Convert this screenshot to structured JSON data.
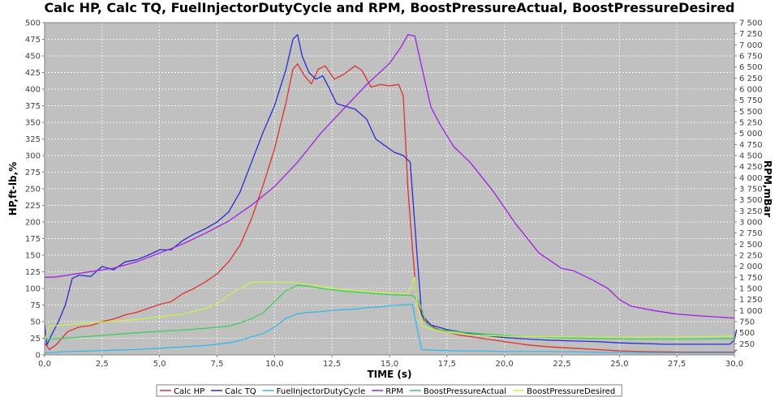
{
  "chart_data": {
    "type": "line",
    "title": "Calc HP, Calc TQ, FuelInjectorDutyCycle and RPM, BoostPressureActual, BoostPressureDesired",
    "xlabel": "TIME (s)",
    "ylabel": "HP,ft-lb,%",
    "y2label": "RPM,mBar",
    "xlim": [
      0,
      30
    ],
    "ylim": [
      0,
      500
    ],
    "y2lim": [
      0,
      7500
    ],
    "x_ticks": [
      "0,0",
      "2,5",
      "5,0",
      "7,5",
      "10,0",
      "12,5",
      "15,0",
      "17,5",
      "20,0",
      "22,5",
      "25,0",
      "27,5",
      "30,0"
    ],
    "y_ticks": [
      "0",
      "25",
      "50",
      "75",
      "100",
      "125",
      "150",
      "175",
      "200",
      "225",
      "250",
      "275",
      "300",
      "325",
      "350",
      "375",
      "400",
      "425",
      "450",
      "475",
      "500"
    ],
    "y2_ticks": [
      "250",
      "500",
      "750",
      "1 000",
      "1 250",
      "1 500",
      "1 750",
      "2 000",
      "2 250",
      "2 500",
      "2 750",
      "3 000",
      "3 250",
      "3 500",
      "3 750",
      "4 000",
      "4 250",
      "4 500",
      "4 750",
      "5 000",
      "5 250",
      "5 500",
      "5 750",
      "6 000",
      "6 250",
      "6 500",
      "6 750",
      "7 000",
      "7 250",
      "7 500"
    ],
    "grid": true,
    "legend_position": "bottom",
    "series": [
      {
        "name": "Calc HP",
        "color": "#e03030",
        "axis": "left",
        "points": [
          [
            0,
            18
          ],
          [
            0.2,
            8
          ],
          [
            0.5,
            15
          ],
          [
            1,
            35
          ],
          [
            1.5,
            42
          ],
          [
            2,
            44
          ],
          [
            2.5,
            50
          ],
          [
            3,
            54
          ],
          [
            3.5,
            60
          ],
          [
            4,
            64
          ],
          [
            4.5,
            70
          ],
          [
            5,
            76
          ],
          [
            5.5,
            80
          ],
          [
            6,
            92
          ],
          [
            6.5,
            100
          ],
          [
            7,
            110
          ],
          [
            7.5,
            122
          ],
          [
            8,
            140
          ],
          [
            8.5,
            165
          ],
          [
            9,
            205
          ],
          [
            9.5,
            255
          ],
          [
            10,
            310
          ],
          [
            10.5,
            380
          ],
          [
            10.8,
            430
          ],
          [
            11,
            438
          ],
          [
            11.3,
            420
          ],
          [
            11.6,
            408
          ],
          [
            11.9,
            430
          ],
          [
            12.2,
            435
          ],
          [
            12.6,
            415
          ],
          [
            13,
            422
          ],
          [
            13.5,
            435
          ],
          [
            13.8,
            428
          ],
          [
            14.2,
            403
          ],
          [
            14.6,
            407
          ],
          [
            15,
            405
          ],
          [
            15.4,
            407
          ],
          [
            15.6,
            390
          ],
          [
            15.8,
            250
          ],
          [
            16,
            160
          ],
          [
            16.2,
            80
          ],
          [
            16.5,
            52
          ],
          [
            17,
            40
          ],
          [
            18,
            30
          ],
          [
            19,
            25
          ],
          [
            20,
            20
          ],
          [
            21,
            15
          ],
          [
            22,
            12
          ],
          [
            23,
            10
          ],
          [
            24,
            8
          ],
          [
            25,
            6
          ],
          [
            26,
            5
          ],
          [
            28,
            4
          ],
          [
            30,
            4
          ],
          [
            30.1,
            8
          ]
        ]
      },
      {
        "name": "Calc TQ",
        "color": "#2b2bd0",
        "axis": "left",
        "points": [
          [
            0,
            45
          ],
          [
            0.1,
            15
          ],
          [
            0.3,
            30
          ],
          [
            0.6,
            50
          ],
          [
            0.9,
            75
          ],
          [
            1.2,
            115
          ],
          [
            1.5,
            120
          ],
          [
            2,
            118
          ],
          [
            2.5,
            133
          ],
          [
            3,
            128
          ],
          [
            3.5,
            140
          ],
          [
            4,
            143
          ],
          [
            4.5,
            150
          ],
          [
            5,
            158
          ],
          [
            5.5,
            158
          ],
          [
            6,
            172
          ],
          [
            6.5,
            182
          ],
          [
            7,
            190
          ],
          [
            7.5,
            200
          ],
          [
            8,
            215
          ],
          [
            8.5,
            245
          ],
          [
            9,
            290
          ],
          [
            9.5,
            335
          ],
          [
            10,
            375
          ],
          [
            10.5,
            430
          ],
          [
            10.8,
            475
          ],
          [
            11,
            482
          ],
          [
            11.2,
            450
          ],
          [
            11.5,
            425
          ],
          [
            11.8,
            415
          ],
          [
            12.1,
            420
          ],
          [
            12.4,
            400
          ],
          [
            12.7,
            378
          ],
          [
            13,
            375
          ],
          [
            13.5,
            370
          ],
          [
            14,
            355
          ],
          [
            14.4,
            325
          ],
          [
            14.8,
            315
          ],
          [
            15.2,
            305
          ],
          [
            15.6,
            300
          ],
          [
            15.9,
            290
          ],
          [
            16.2,
            150
          ],
          [
            16.4,
            60
          ],
          [
            16.8,
            45
          ],
          [
            17.5,
            38
          ],
          [
            18.5,
            32
          ],
          [
            20,
            26
          ],
          [
            22,
            22
          ],
          [
            24,
            20
          ],
          [
            25,
            18
          ],
          [
            27,
            16
          ],
          [
            29,
            16
          ],
          [
            29.8,
            16
          ],
          [
            30,
            22
          ],
          [
            30.1,
            38
          ]
        ]
      },
      {
        "name": "FuelInjectorDutyCycle",
        "color": "#34b8e8",
        "axis": "left",
        "points": [
          [
            0,
            3
          ],
          [
            1,
            5
          ],
          [
            2,
            6
          ],
          [
            3,
            7
          ],
          [
            4,
            8
          ],
          [
            5,
            10
          ],
          [
            6,
            12
          ],
          [
            7,
            14
          ],
          [
            8,
            18
          ],
          [
            8.5,
            22
          ],
          [
            9,
            27
          ],
          [
            9.5,
            32
          ],
          [
            10,
            42
          ],
          [
            10.5,
            55
          ],
          [
            11,
            62
          ],
          [
            11.5,
            64
          ],
          [
            12,
            65
          ],
          [
            12.5,
            67
          ],
          [
            13,
            68
          ],
          [
            13.5,
            69
          ],
          [
            14,
            71
          ],
          [
            14.5,
            72
          ],
          [
            15,
            74
          ],
          [
            15.5,
            75
          ],
          [
            16,
            76
          ],
          [
            16.2,
            40
          ],
          [
            16.4,
            8
          ],
          [
            17,
            7
          ],
          [
            18,
            6
          ],
          [
            19,
            6
          ],
          [
            20,
            5
          ],
          [
            22,
            5
          ],
          [
            24,
            4
          ],
          [
            26,
            3
          ],
          [
            28,
            3
          ],
          [
            30,
            3
          ]
        ]
      },
      {
        "name": "RPM",
        "color": "#a020e0",
        "axis": "right",
        "points": [
          [
            0,
            1750
          ],
          [
            0.5,
            1760
          ],
          [
            1,
            1800
          ],
          [
            2,
            1880
          ],
          [
            3,
            1960
          ],
          [
            4,
            2100
          ],
          [
            5,
            2300
          ],
          [
            6,
            2500
          ],
          [
            7,
            2750
          ],
          [
            8,
            3020
          ],
          [
            9,
            3380
          ],
          [
            10,
            3800
          ],
          [
            11,
            4350
          ],
          [
            12,
            5000
          ],
          [
            13,
            5550
          ],
          [
            14,
            6100
          ],
          [
            15,
            6580
          ],
          [
            15.5,
            6950
          ],
          [
            15.8,
            7230
          ],
          [
            16.1,
            7200
          ],
          [
            16.4,
            6500
          ],
          [
            16.8,
            5600
          ],
          [
            17.2,
            5200
          ],
          [
            17.8,
            4700
          ],
          [
            18.5,
            4350
          ],
          [
            19.5,
            3700
          ],
          [
            20.5,
            2950
          ],
          [
            21.5,
            2300
          ],
          [
            22.5,
            1950
          ],
          [
            23,
            1900
          ],
          [
            23.8,
            1700
          ],
          [
            24.5,
            1500
          ],
          [
            25,
            1250
          ],
          [
            25.5,
            1100
          ],
          [
            26.5,
            1000
          ],
          [
            27.5,
            920
          ],
          [
            28.5,
            880
          ],
          [
            30,
            830
          ]
        ]
      },
      {
        "name": "BoostPressureActual",
        "color": "#3ccf5a",
        "axis": "right",
        "points": [
          [
            0,
            350
          ],
          [
            1,
            380
          ],
          [
            2,
            420
          ],
          [
            3,
            460
          ],
          [
            4,
            500
          ],
          [
            5,
            530
          ],
          [
            6,
            560
          ],
          [
            7,
            600
          ],
          [
            8,
            650
          ],
          [
            8.5,
            720
          ],
          [
            9,
            820
          ],
          [
            9.5,
            950
          ],
          [
            10,
            1200
          ],
          [
            10.5,
            1450
          ],
          [
            11,
            1570
          ],
          [
            11.5,
            1550
          ],
          [
            12,
            1500
          ],
          [
            12.5,
            1470
          ],
          [
            13,
            1440
          ],
          [
            13.5,
            1420
          ],
          [
            14,
            1400
          ],
          [
            14.5,
            1380
          ],
          [
            15,
            1360
          ],
          [
            15.5,
            1350
          ],
          [
            16,
            1340
          ],
          [
            16.3,
            1200
          ],
          [
            16.6,
            700
          ],
          [
            17,
            580
          ],
          [
            18,
            520
          ],
          [
            19,
            480
          ],
          [
            20,
            440
          ],
          [
            22,
            390
          ],
          [
            24,
            370
          ],
          [
            26,
            360
          ],
          [
            28,
            360
          ],
          [
            30,
            370
          ]
        ]
      },
      {
        "name": "BoostPressureDesired",
        "color": "#c8f050",
        "axis": "right",
        "points": [
          [
            0,
            300
          ],
          [
            0.2,
            650
          ],
          [
            1,
            680
          ],
          [
            2,
            720
          ],
          [
            3,
            760
          ],
          [
            4,
            800
          ],
          [
            5,
            860
          ],
          [
            6,
            920
          ],
          [
            7,
            1050
          ],
          [
            7.5,
            1150
          ],
          [
            8,
            1350
          ],
          [
            8.5,
            1500
          ],
          [
            9,
            1640
          ],
          [
            10,
            1640
          ],
          [
            11,
            1630
          ],
          [
            12,
            1550
          ],
          [
            13,
            1470
          ],
          [
            14,
            1430
          ],
          [
            15,
            1400
          ],
          [
            15.8,
            1380
          ],
          [
            16.1,
            1750
          ],
          [
            16.2,
            1200
          ],
          [
            16.4,
            650
          ],
          [
            17,
            550
          ],
          [
            18,
            480
          ],
          [
            19,
            440
          ],
          [
            20,
            420
          ],
          [
            22,
            410
          ],
          [
            24,
            400
          ],
          [
            26,
            400
          ],
          [
            28,
            410
          ],
          [
            30,
            420
          ]
        ]
      }
    ]
  }
}
